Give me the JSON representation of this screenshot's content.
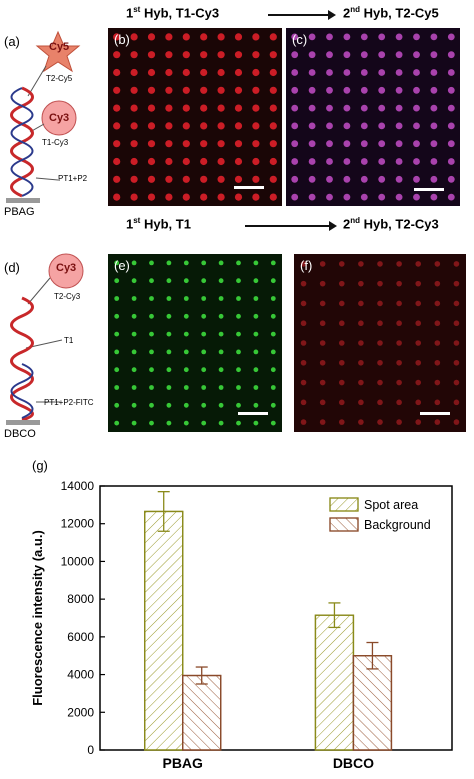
{
  "headers": {
    "row1_left": {
      "pre": "1",
      "sup": "st",
      "post": " Hyb, T1-Cy3"
    },
    "row1_right": {
      "pre": "2",
      "sup": "nd",
      "post": " Hyb, T2-Cy5"
    },
    "row2_left": {
      "pre": "1",
      "sup": "st",
      "post": " Hyb, T1"
    },
    "row2_right": {
      "pre": "2",
      "sup": "nd",
      "post": " Hyb, T2-Cy3"
    }
  },
  "panel_labels": {
    "a": "(a)",
    "b": "(b)",
    "c": "(c)",
    "d": "(d)",
    "e": "(e)",
    "f": "(f)",
    "g": "(g)"
  },
  "schematic_a": {
    "dye_top": "Cy5",
    "dye_top_label": "T2-Cy5",
    "dye_mid": "Cy3",
    "dye_mid_label": "T1-Cy3",
    "probe": "PT1+P2",
    "substrate": "PBAG"
  },
  "schematic_d": {
    "dye_top": "Cy3",
    "dye_top_label": "T2-Cy3",
    "strand_label": "T1",
    "probe": "PT1+P2-FITC",
    "substrate": "DBCO"
  },
  "colors": {
    "cy5_star": "#e8826a",
    "cy3_circle": "#f5a3a3",
    "helix_red": "#c8282a",
    "helix_blue": "#2b3a8c",
    "img_b": "#e0202a",
    "img_c": "#c34ec8",
    "img_e": "#3ad23a",
    "img_f": "#d0242a",
    "bar_edge_spot": "#8a8a1a",
    "bar_edge_bg": "#8a4a2a"
  },
  "chart_data": {
    "type": "bar",
    "categories": [
      "PBAG",
      "DBCO"
    ],
    "series": [
      {
        "name": "Spot area",
        "values": [
          12650,
          7150
        ],
        "errors": [
          1050,
          650
        ]
      },
      {
        "name": "Background",
        "values": [
          3950,
          5000
        ],
        "errors": [
          450,
          700
        ]
      }
    ],
    "ylabel": "Fluorescence intensity (a.u.)",
    "ylim": [
      0,
      14000
    ],
    "yticks": [
      0,
      2000,
      4000,
      6000,
      8000,
      10000,
      12000,
      14000
    ],
    "legend_position": "top-right"
  }
}
